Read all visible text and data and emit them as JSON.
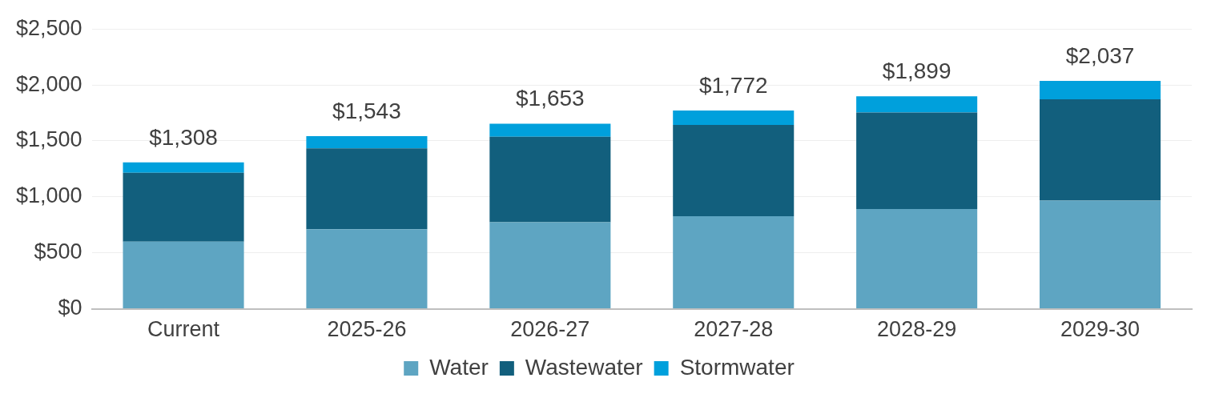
{
  "chart_data": {
    "type": "bar",
    "stacked": true,
    "categories": [
      "Current",
      "2025-26",
      "2026-27",
      "2027-28",
      "2028-29",
      "2029-30"
    ],
    "series": [
      {
        "name": "Water",
        "color": "#5ea5c2",
        "values": [
          600,
          710,
          773,
          828,
          891,
          967
        ]
      },
      {
        "name": "Wastewater",
        "color": "#125f7d",
        "values": [
          615,
          724,
          765,
          815,
          863,
          905
        ]
      },
      {
        "name": "Stormwater",
        "color": "#00a0dc",
        "values": [
          93,
          109,
          115,
          129,
          145,
          165
        ]
      }
    ],
    "totals": [
      "$1,308",
      "$1,543",
      "$1,653",
      "$1,772",
      "$1,899",
      "$2,037"
    ],
    "ylim": [
      0,
      2500
    ],
    "yticks": [
      {
        "value": 0,
        "label": "$0"
      },
      {
        "value": 500,
        "label": "$500"
      },
      {
        "value": 1000,
        "label": "$1,000"
      },
      {
        "value": 1500,
        "label": "$1,500"
      },
      {
        "value": 2000,
        "label": "$2,000"
      },
      {
        "value": 2500,
        "label": "$2,500"
      }
    ],
    "grid": "y",
    "legend": "bottom"
  }
}
